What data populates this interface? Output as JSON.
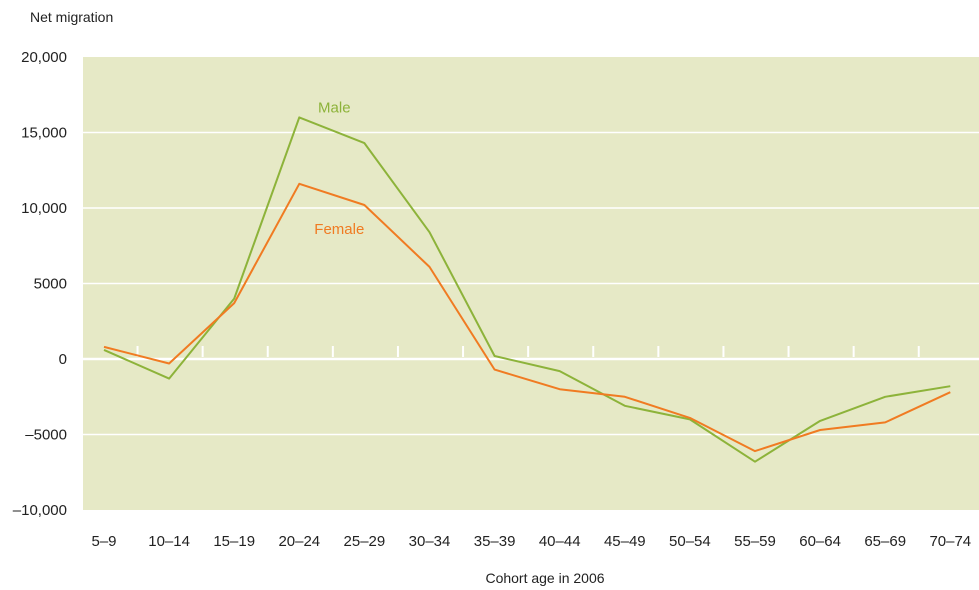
{
  "chart_data": {
    "type": "line",
    "title": "",
    "ylabel": "Net migration",
    "xlabel": "Cohort age in 2006",
    "categories": [
      "5–9",
      "10–14",
      "15–19",
      "20–24",
      "25–29",
      "30–34",
      "35–39",
      "40–44",
      "45–49",
      "50–54",
      "55–59",
      "60–64",
      "65–69",
      "70–74"
    ],
    "ylim": [
      -10000,
      20000
    ],
    "yticks": [
      {
        "value": 20000,
        "label": "20,000"
      },
      {
        "value": 15000,
        "label": "15,000"
      },
      {
        "value": 10000,
        "label": "10,000"
      },
      {
        "value": 5000,
        "label": "5000"
      },
      {
        "value": 0,
        "label": "0"
      },
      {
        "value": -5000,
        "label": "–5000"
      },
      {
        "value": -10000,
        "label": "–10,000"
      }
    ],
    "grid": true,
    "series": [
      {
        "name": "Male",
        "color": "#8db33a",
        "values": [
          600,
          -1300,
          4000,
          16000,
          14300,
          8400,
          200,
          -800,
          -3100,
          -4000,
          -6800,
          -4100,
          -2500,
          -1800
        ]
      },
      {
        "name": "Female",
        "color": "#f07b22",
        "values": [
          800,
          -300,
          3700,
          11600,
          10200,
          6100,
          -700,
          -2000,
          -2500,
          -3900,
          -6100,
          -4700,
          -4200,
          -2200
        ]
      }
    ],
    "plot_background": "#e6e9c6",
    "grid_color": "#ffffff"
  }
}
